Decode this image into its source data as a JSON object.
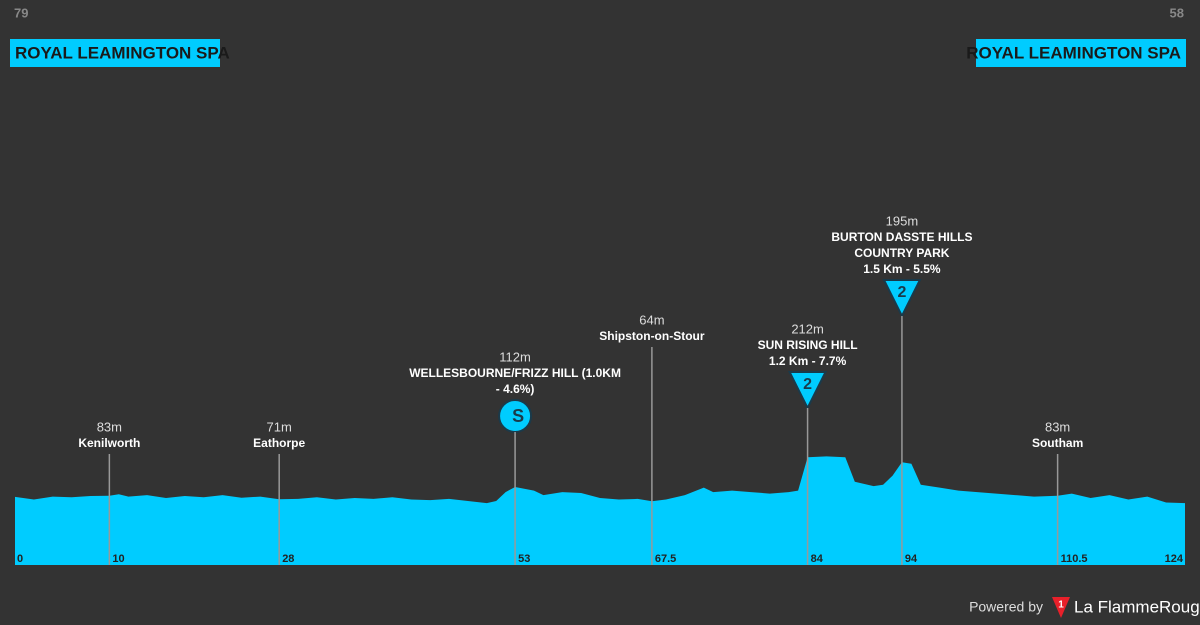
{
  "chart_data": {
    "type": "area",
    "start": {
      "elevation": "79",
      "name": "ROYAL LEAMINGTON SPA"
    },
    "finish": {
      "elevation": "58",
      "name": "ROYAL LEAMINGTON SPA"
    },
    "color": "#00ccff",
    "background": "#333333",
    "x": [
      0,
      2,
      4,
      6,
      8,
      10,
      11,
      12,
      14,
      16,
      18,
      20,
      22,
      24,
      26,
      28,
      30,
      32,
      34,
      36,
      38,
      40,
      42,
      44,
      46,
      48,
      50,
      51,
      52,
      53,
      55,
      56,
      58,
      60,
      62,
      64,
      66,
      67.5,
      69,
      71,
      73,
      74,
      76,
      78,
      80,
      82,
      83,
      84,
      86,
      88,
      89,
      91,
      92,
      93,
      94,
      95,
      96,
      98,
      100,
      102,
      104,
      106,
      108,
      110.5,
      112,
      114,
      116,
      118,
      120,
      122,
      124
    ],
    "values": [
      79,
      70,
      80,
      78,
      82,
      83,
      88,
      80,
      85,
      75,
      82,
      78,
      85,
      76,
      80,
      71,
      72,
      78,
      70,
      75,
      72,
      78,
      70,
      68,
      72,
      65,
      58,
      65,
      95,
      112,
      100,
      85,
      95,
      92,
      75,
      70,
      72,
      64,
      70,
      85,
      110,
      95,
      100,
      95,
      90,
      95,
      100,
      212,
      215,
      212,
      130,
      115,
      120,
      150,
      195,
      190,
      120,
      110,
      100,
      95,
      90,
      85,
      80,
      83,
      90,
      75,
      85,
      70,
      80,
      60,
      58
    ],
    "xlim": [
      0,
      124
    ],
    "ylim": [
      -150,
      1500
    ],
    "markers": [
      {
        "km": 10,
        "km_label": "10",
        "elevation": "83m",
        "lines": [
          "Kenilworth"
        ]
      },
      {
        "km": 28,
        "km_label": "28",
        "elevation": "71m",
        "lines": [
          "Eathorpe"
        ]
      },
      {
        "km": 53,
        "km_label": "53",
        "elevation": "112m",
        "lines": [
          "WELLESBOURNE/FRIZZ HILL (1.0KM",
          "- 4.6%)"
        ],
        "icon": "sprint",
        "icon_text": "S"
      },
      {
        "km": 67.5,
        "km_label": "67.5",
        "elevation": "64m",
        "lines": [
          "Shipston-on-Stour"
        ]
      },
      {
        "km": 84,
        "km_label": "84",
        "elevation": "212m",
        "lines": [
          "SUN RISING HILL",
          "1.2 Km - 7.7%"
        ],
        "icon": "climb",
        "icon_text": "2"
      },
      {
        "km": 94,
        "km_label": "94",
        "elevation": "195m",
        "lines": [
          "BURTON DASSTE HILLS",
          "COUNTRY PARK",
          "1.5 Km - 5.5%"
        ],
        "icon": "climb",
        "icon_text": "2"
      },
      {
        "km": 110.5,
        "km_label": "110.5",
        "elevation": "83m",
        "lines": [
          "Southam"
        ]
      }
    ],
    "axis_ends": [
      {
        "km": 0,
        "km_label": "0"
      },
      {
        "km": 124,
        "km_label": "124"
      }
    ],
    "footer": {
      "powered": "Powered by",
      "logo_mark": "1",
      "brand": "La FlammeRouge"
    }
  }
}
